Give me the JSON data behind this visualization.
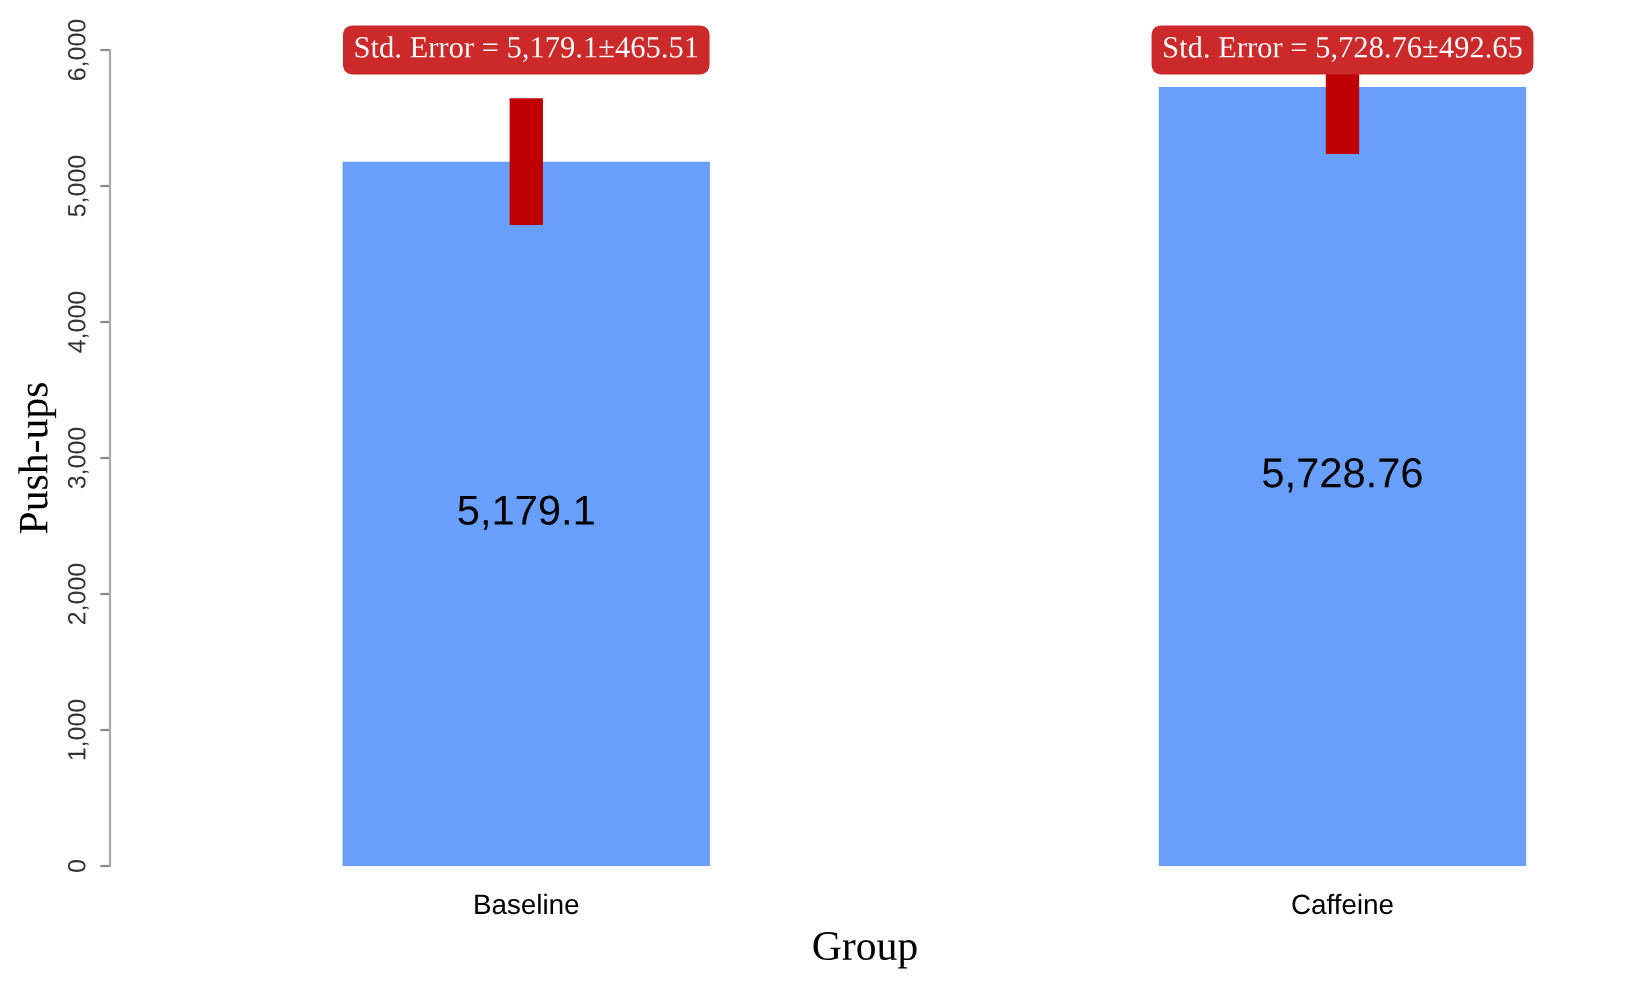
{
  "chart_data": {
    "type": "bar",
    "xlabel": "Group",
    "ylabel": "Push-ups",
    "categories": [
      "Baseline",
      "Caffeine"
    ],
    "values": [
      5179.1,
      5728.76
    ],
    "value_labels": [
      "5,179.1",
      "5,728.76"
    ],
    "errors": [
      465.51,
      492.65
    ],
    "color": "#679ffb",
    "ylim": [
      0,
      6000
    ],
    "yticks": [
      0,
      {
        "value": 1000,
        "label": "1,000"
      },
      {
        "value": 2000,
        "label": "2,000"
      },
      {
        "value": 3000,
        "label": "3,000"
      },
      {
        "value": 4000,
        "label": "4,000"
      },
      {
        "value": 5000,
        "label": "5,000"
      },
      {
        "value": 6000,
        "label": "6,000"
      }
    ],
    "annotations": [
      "Std. Error = 5,179.1±465.51",
      "Std. Error = 5,728.76±492.65"
    ],
    "grid": false,
    "legend": false
  }
}
